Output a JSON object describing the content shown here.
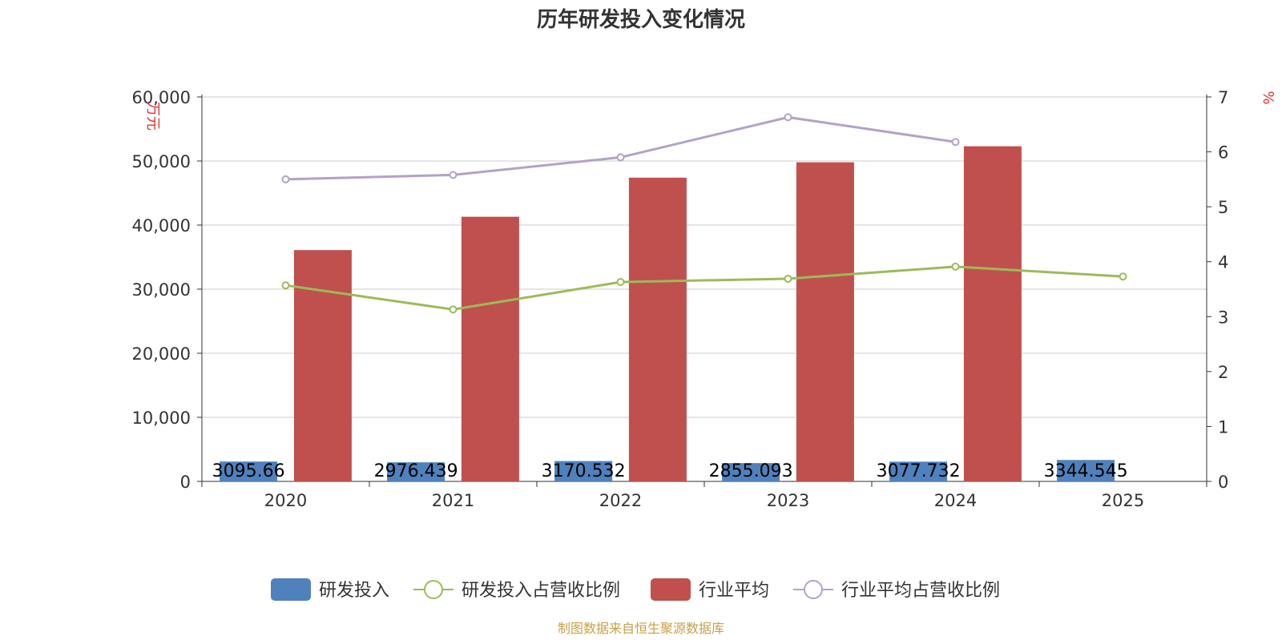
{
  "chart_data": {
    "type": "bar",
    "title": "历年研发投入变化情况",
    "y_left_label": "万元",
    "y_right_label": "%",
    "categories": [
      "2020",
      "2021",
      "2022",
      "2023",
      "2024",
      "2025"
    ],
    "ylim_left": [
      0,
      60000
    ],
    "ylim_right": [
      0,
      7
    ],
    "yticks_left": [
      "0",
      "10,000",
      "20,000",
      "30,000",
      "40,000",
      "50,000",
      "60,000"
    ],
    "yticks_right": [
      "0",
      "1",
      "2",
      "3",
      "4",
      "5",
      "6",
      "7"
    ],
    "grid": true,
    "legend_position": "bottom",
    "series": [
      {
        "name": "研发投入",
        "type": "bar",
        "axis": "left",
        "color": "#4f81bd",
        "values": [
          3095.66,
          2976.439,
          3170.532,
          2855.093,
          3077.732,
          3344.545
        ],
        "labels": [
          "3095.66",
          "2976.439",
          "3170.532",
          "2855.093",
          "3077.732",
          "3344.545"
        ]
      },
      {
        "name": "研发投入占营收比例",
        "type": "line",
        "axis": "right",
        "color": "#9bbb59",
        "values": [
          3.57,
          3.13,
          3.63,
          3.69,
          3.91,
          3.73
        ]
      },
      {
        "name": "行业平均",
        "type": "bar",
        "axis": "left",
        "color": "#c0504d",
        "values": [
          36100,
          41300,
          47400,
          49800,
          52300,
          null
        ]
      },
      {
        "name": "行业平均占营收比例",
        "type": "line",
        "axis": "right",
        "color": "#b3a2c7",
        "values": [
          5.5,
          5.58,
          5.9,
          6.63,
          6.18,
          null
        ]
      }
    ],
    "source_note": "制图数据来自恒生聚源数据库"
  }
}
